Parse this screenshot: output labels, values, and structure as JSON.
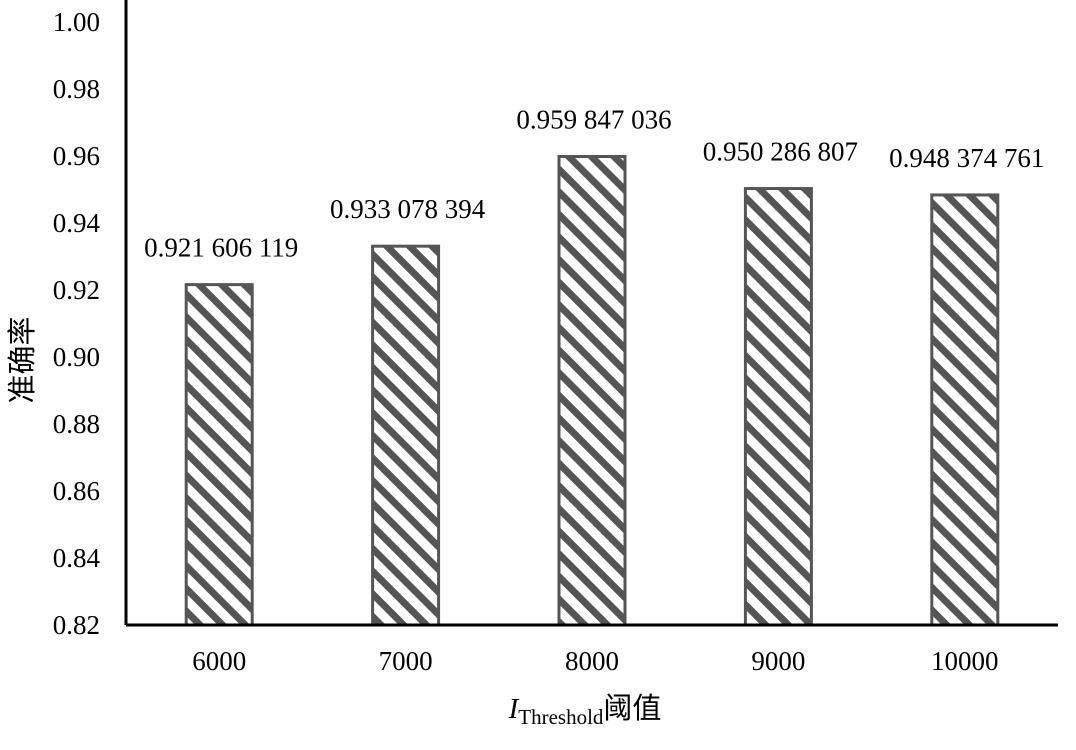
{
  "chart_data": {
    "type": "bar",
    "categories": [
      "6000",
      "7000",
      "8000",
      "9000",
      "10000"
    ],
    "values": [
      0.921606119,
      0.933078394,
      0.959847036,
      0.950286807,
      0.948374761
    ],
    "data_labels": [
      "0.921 606 119",
      "0.933 078 394",
      "0.959 847 036",
      "0.950 286 807",
      "0.948 374 761"
    ],
    "ylim": [
      0.82,
      1.0
    ],
    "yticks": [
      "0.82",
      "0.84",
      "0.86",
      "0.88",
      "0.90",
      "0.92",
      "0.94",
      "0.96",
      "0.98",
      "1.00"
    ],
    "ylabel": "准确率",
    "xlabel": {
      "main": "I",
      "subscript": "Threshold",
      "suffix": "阈值"
    },
    "grid": false,
    "legend": "none",
    "bar_pattern": "diagonal-hatch",
    "colors": {
      "bar_outline": "#555555",
      "hatch": "#555555",
      "bar_fill": "#ffffff",
      "axis": "#000000"
    }
  }
}
